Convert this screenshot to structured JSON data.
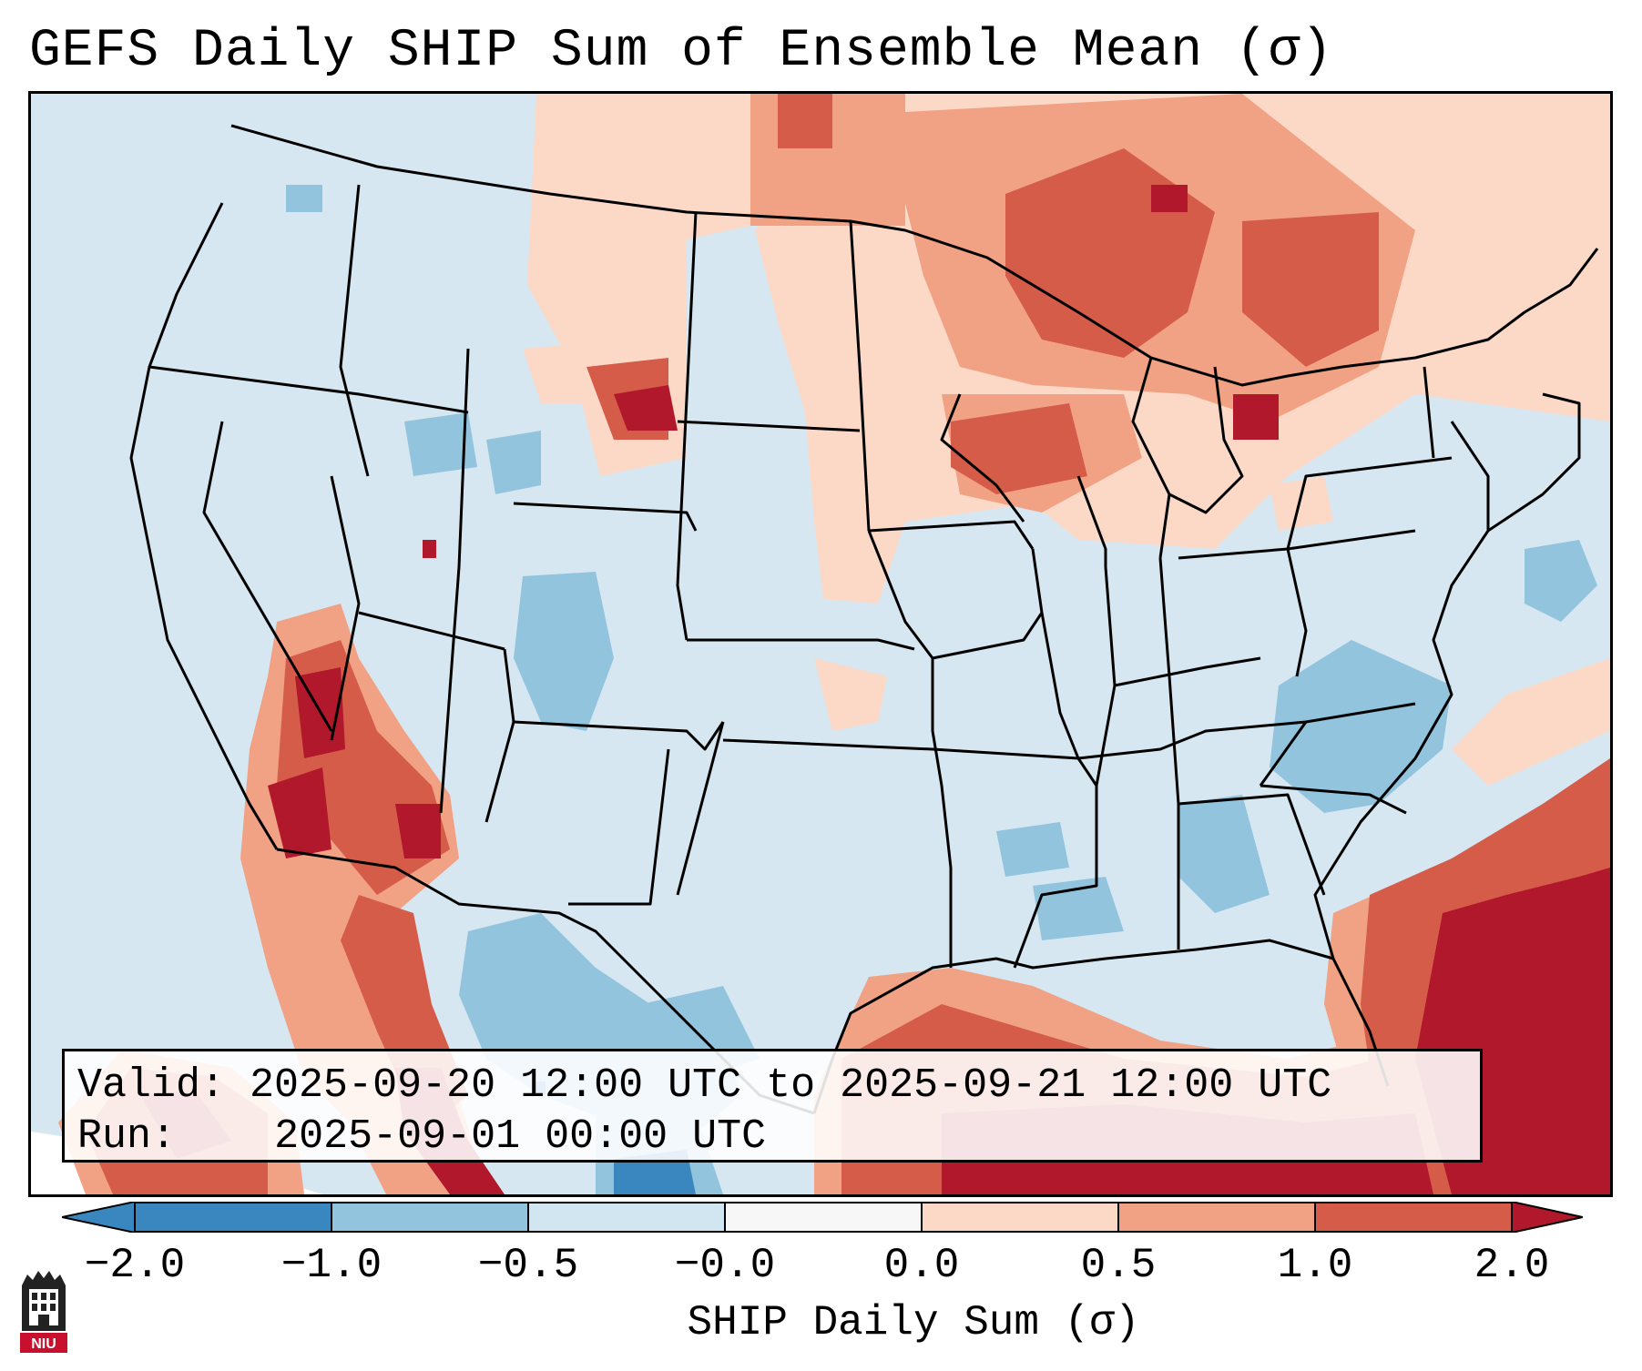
{
  "title": "GEFS Daily SHIP Sum of Ensemble Mean (σ)",
  "colors": {
    "-2.0": "#3a87c0",
    "-1.0": "#92c4de",
    "-0.5": "#d2e6f1",
    "0.0": "#f7f7f7",
    "0.5": "#fcd9c6",
    "1.0": "#f1a184",
    "1.5": "#d65c4a",
    "2.0": "#b2182b",
    "ocean_background": "#d6e7f2",
    "outside_domain": "#ffffff"
  },
  "info_box": {
    "valid_label": "Valid:",
    "valid_value": "2025-09-20 12:00 UTC to 2025-09-21 12:00 UTC",
    "run_label": "Run:",
    "run_value": "2025-09-01 00:00 UTC"
  },
  "colorbar": {
    "label": "SHIP Daily Sum (σ)",
    "ticks": [
      "−2.0",
      "−1.0",
      "−0.5",
      "−0.0",
      "0.0",
      "0.5",
      "1.0",
      "2.0"
    ],
    "levels": [
      -2.0,
      -1.0,
      -0.5,
      -0.0,
      0.0,
      0.5,
      1.0,
      1.5,
      2.0
    ],
    "extend": "both"
  },
  "logo": {
    "text": "NIU",
    "icon": "niu-logo-icon"
  },
  "map": {
    "projection": "Lambert Conformal",
    "region": "CONUS",
    "features": [
      "states",
      "coastlines",
      "national borders"
    ]
  }
}
